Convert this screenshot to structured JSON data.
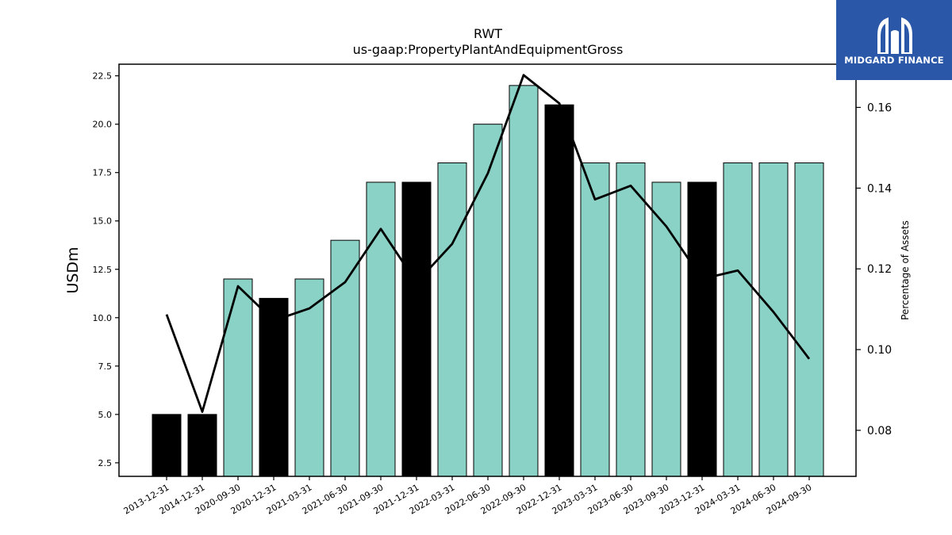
{
  "logo": {
    "text": "MIDGARD FINANCE",
    "color": "#2a57a8"
  },
  "chart_data": {
    "type": "bar",
    "title": "RWT",
    "subtitle": "us-gaap:PropertyPlantAndEquipmentGross",
    "ylabel": "USDm",
    "y2label": "Percentage of Assets",
    "categories": [
      "2013-12-31",
      "2014-12-31",
      "2020-09-30",
      "2020-12-31",
      "2021-03-31",
      "2021-06-30",
      "2021-09-30",
      "2021-12-31",
      "2022-03-31",
      "2022-06-30",
      "2022-09-30",
      "2022-12-31",
      "2023-03-31",
      "2023-06-30",
      "2023-09-30",
      "2023-12-31",
      "2024-03-31",
      "2024-06-30",
      "2024-09-30"
    ],
    "series": [
      {
        "values": [
          5,
          5,
          12,
          11,
          12,
          14,
          17,
          17,
          18,
          20,
          22,
          21,
          18,
          18,
          17,
          17,
          18,
          18,
          18
        ]
      },
      {
        "axis": "right",
        "type": "line",
        "values": [
          0.1087,
          0.0846,
          0.1157,
          0.1072,
          0.1102,
          0.1167,
          0.1299,
          0.1166,
          0.1262,
          0.1437,
          0.168,
          0.161,
          0.1372,
          0.1406,
          0.1305,
          0.1175,
          0.1196,
          0.1093,
          0.0977
        ]
      }
    ],
    "bar_colors": [
      "#000000",
      "#000000",
      "#8ad1c6",
      "#000000",
      "#8ad1c6",
      "#8ad1c6",
      "#8ad1c6",
      "#000000",
      "#8ad1c6",
      "#8ad1c6",
      "#8ad1c6",
      "#000000",
      "#8ad1c6",
      "#8ad1c6",
      "#8ad1c6",
      "#000000",
      "#8ad1c6",
      "#8ad1c6",
      "#8ad1c6"
    ],
    "line_color": "#000000",
    "ylim": [
      1.8,
      23.1
    ],
    "y2lim": [
      0.0686,
      0.1707
    ],
    "yticks": [
      2.5,
      5.0,
      7.5,
      10.0,
      12.5,
      15.0,
      17.5,
      20.0,
      22.5
    ],
    "ytick_labels": [
      "2.5",
      "5.0",
      "7.5",
      "10.0",
      "12.5",
      "15.0",
      "17.5",
      "20.0",
      "22.5"
    ],
    "y2ticks": [
      0.08,
      0.1,
      0.12,
      0.14,
      0.16
    ],
    "y2tick_labels": [
      "0.08",
      "0.10",
      "0.12",
      "0.14",
      "0.16"
    ],
    "grid": false,
    "legend": "none"
  }
}
